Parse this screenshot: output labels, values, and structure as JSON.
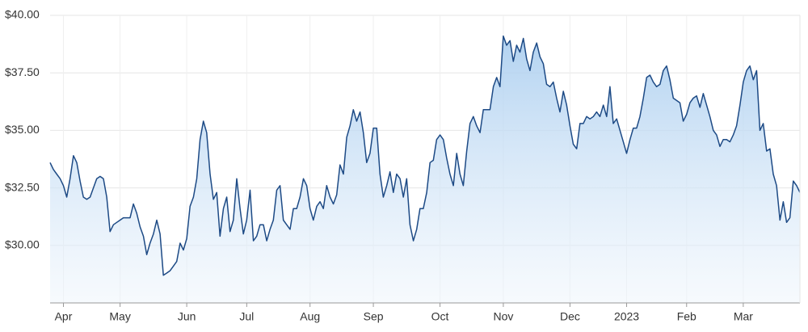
{
  "chart_data": {
    "type": "area",
    "values": [
      33.6,
      33.3,
      33.1,
      32.9,
      32.6,
      32.1,
      32.9,
      33.9,
      33.6,
      32.8,
      32.1,
      32.0,
      32.1,
      32.5,
      32.9,
      33.0,
      32.9,
      32.1,
      30.6,
      30.9,
      31.0,
      31.1,
      31.2,
      31.2,
      31.2,
      31.8,
      31.4,
      30.8,
      30.4,
      29.6,
      30.1,
      30.5,
      31.1,
      30.5,
      28.7,
      28.8,
      28.9,
      29.1,
      29.3,
      30.1,
      29.8,
      30.3,
      31.7,
      32.1,
      32.9,
      34.6,
      35.4,
      34.9,
      33.1,
      32.0,
      32.3,
      30.4,
      31.6,
      32.1,
      30.6,
      31.1,
      32.9,
      31.6,
      30.5,
      31.1,
      32.4,
      30.2,
      30.4,
      30.9,
      30.9,
      30.2,
      30.7,
      31.1,
      32.4,
      32.6,
      31.1,
      30.9,
      30.7,
      31.6,
      31.6,
      32.1,
      32.9,
      32.6,
      31.6,
      31.1,
      31.7,
      31.9,
      31.6,
      32.6,
      32.1,
      31.8,
      32.2,
      33.5,
      33.1,
      34.7,
      35.2,
      35.9,
      35.4,
      35.8,
      34.9,
      33.6,
      34.0,
      35.1,
      35.1,
      33.1,
      32.1,
      32.6,
      33.2,
      32.3,
      33.1,
      32.9,
      32.1,
      32.9,
      30.9,
      30.2,
      30.7,
      31.6,
      31.6,
      32.3,
      33.6,
      33.7,
      34.6,
      34.8,
      34.6,
      33.8,
      33.1,
      32.6,
      34.0,
      33.1,
      32.6,
      34.1,
      35.3,
      35.6,
      35.2,
      34.9,
      35.9,
      35.9,
      35.9,
      36.9,
      37.3,
      36.9,
      39.1,
      38.7,
      38.9,
      38.0,
      38.7,
      38.4,
      39.0,
      38.1,
      37.6,
      38.4,
      38.8,
      38.2,
      37.9,
      37.0,
      36.9,
      37.1,
      36.4,
      35.8,
      36.7,
      36.1,
      35.2,
      34.4,
      34.2,
      35.3,
      35.3,
      35.6,
      35.5,
      35.6,
      35.8,
      35.6,
      36.1,
      35.6,
      36.9,
      35.3,
      35.5,
      35.0,
      34.5,
      34.0,
      34.6,
      35.1,
      35.1,
      35.6,
      36.4,
      37.3,
      37.4,
      37.1,
      36.9,
      37.0,
      37.6,
      37.8,
      37.2,
      36.4,
      36.3,
      36.2,
      35.4,
      35.7,
      36.2,
      36.4,
      36.5,
      36.0,
      36.6,
      36.1,
      35.6,
      35.0,
      34.8,
      34.3,
      34.6,
      34.6,
      34.5,
      34.8,
      35.2,
      36.1,
      37.1,
      37.6,
      37.8,
      37.2,
      37.6,
      35.0,
      35.3,
      34.1,
      34.2,
      33.1,
      32.6,
      31.1,
      31.9,
      31.0,
      31.2,
      32.8,
      32.6,
      32.3
    ],
    "color": "#1d4a85",
    "xlim": [
      0,
      225
    ],
    "xticks": [
      {
        "value": 4,
        "label": "Apr"
      },
      {
        "value": 21,
        "label": "May"
      },
      {
        "value": 41,
        "label": "Jun"
      },
      {
        "value": 59,
        "label": "Jul"
      },
      {
        "value": 78,
        "label": "Aug"
      },
      {
        "value": 97,
        "label": "Sep"
      },
      {
        "value": 117,
        "label": "Oct"
      },
      {
        "value": 136,
        "label": "Nov"
      },
      {
        "value": 156,
        "label": "Dec"
      },
      {
        "value": 173,
        "label": "2023"
      },
      {
        "value": 191,
        "label": "Feb"
      },
      {
        "value": 208,
        "label": "Mar"
      }
    ],
    "ylim": [
      27.5,
      40
    ],
    "yticks": [
      {
        "value": 30,
        "label": "$30.00"
      },
      {
        "value": 32.5,
        "label": "$32.50"
      },
      {
        "value": 35,
        "label": "$35.00"
      },
      {
        "value": 37.5,
        "label": "$37.50"
      },
      {
        "value": 40,
        "label": "$40.00"
      }
    ],
    "grid": true
  }
}
